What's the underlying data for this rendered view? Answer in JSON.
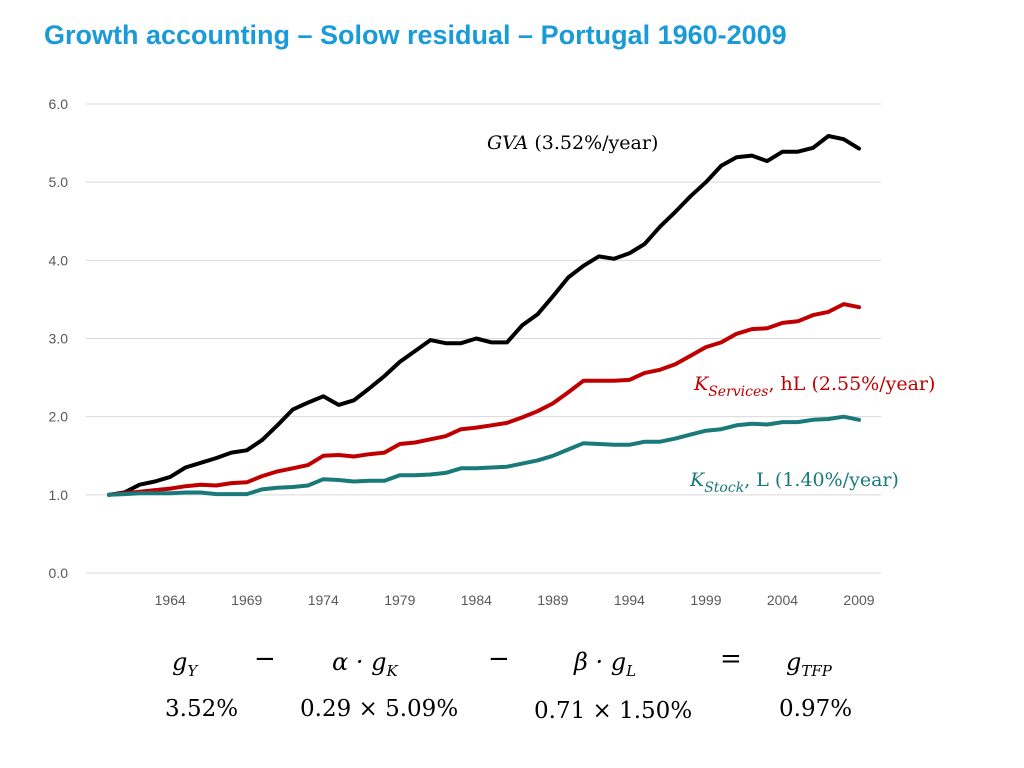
{
  "title": "Growth accounting – Solow residual – Portugal 1960-2009",
  "chart_data": {
    "type": "line",
    "title": "Growth accounting – Solow residual – Portugal 1960-2009",
    "xlabel": "",
    "ylabel": "",
    "ylim": [
      0,
      6
    ],
    "yticks": [
      "0.0",
      "1.0",
      "2.0",
      "3.0",
      "4.0",
      "5.0",
      "6.0"
    ],
    "xticks": [
      "1964",
      "1969",
      "1974",
      "1979",
      "1984",
      "1989",
      "1994",
      "1999",
      "2004",
      "2009"
    ],
    "xrange": [
      1960,
      2009
    ],
    "grid": true,
    "series": [
      {
        "name": "GVA (3.52%/year)",
        "label_main": "GVA",
        "label_sub": "",
        "label_rest": " (3.52%/year)",
        "color": "#000000",
        "x": [
          1960,
          1961,
          1962,
          1963,
          1964,
          1965,
          1966,
          1967,
          1968,
          1969,
          1970,
          1971,
          1972,
          1973,
          1974,
          1975,
          1976,
          1977,
          1978,
          1979,
          1980,
          1981,
          1982,
          1983,
          1984,
          1985,
          1986,
          1987,
          1988,
          1989,
          1990,
          1991,
          1992,
          1993,
          1994,
          1995,
          1996,
          1997,
          1998,
          1999,
          2000,
          2001,
          2002,
          2003,
          2004,
          2005,
          2006,
          2007,
          2008,
          2009
        ],
        "values": [
          1.0,
          1.03,
          1.13,
          1.17,
          1.23,
          1.35,
          1.41,
          1.47,
          1.54,
          1.57,
          1.7,
          1.89,
          2.09,
          2.18,
          2.26,
          2.15,
          2.21,
          2.36,
          2.52,
          2.7,
          2.84,
          2.98,
          2.94,
          2.94,
          3.0,
          2.95,
          2.95,
          3.17,
          3.31,
          3.54,
          3.78,
          3.93,
          4.05,
          4.02,
          4.09,
          4.21,
          4.43,
          4.62,
          4.82,
          5.0,
          5.21,
          5.32,
          5.34,
          5.27,
          5.39,
          5.39,
          5.44,
          5.59,
          5.55,
          5.43
        ]
      },
      {
        "name": "K_Services, hL (2.55%/year)",
        "label_main": "K",
        "label_sub": "Services",
        "label_rest": ", hL (2.55%/year)",
        "color": "#c00000",
        "x": [
          1960,
          1961,
          1962,
          1963,
          1964,
          1965,
          1966,
          1967,
          1968,
          1969,
          1970,
          1971,
          1972,
          1973,
          1974,
          1975,
          1976,
          1977,
          1978,
          1979,
          1980,
          1981,
          1982,
          1983,
          1984,
          1985,
          1986,
          1987,
          1988,
          1989,
          1990,
          1991,
          1992,
          1993,
          1994,
          1995,
          1996,
          1997,
          1998,
          1999,
          2000,
          2001,
          2002,
          2003,
          2004,
          2005,
          2006,
          2007,
          2008,
          2009
        ],
        "values": [
          1.0,
          1.02,
          1.04,
          1.06,
          1.08,
          1.11,
          1.13,
          1.12,
          1.15,
          1.16,
          1.24,
          1.3,
          1.34,
          1.38,
          1.5,
          1.51,
          1.49,
          1.52,
          1.54,
          1.65,
          1.67,
          1.71,
          1.75,
          1.84,
          1.86,
          1.89,
          1.92,
          1.99,
          2.07,
          2.17,
          2.31,
          2.46,
          2.46,
          2.46,
          2.47,
          2.56,
          2.6,
          2.67,
          2.78,
          2.89,
          2.95,
          3.06,
          3.12,
          3.13,
          3.2,
          3.22,
          3.3,
          3.34,
          3.44,
          3.4
        ]
      },
      {
        "name": "K_Stock, L (1.40%/year)",
        "label_main": "K",
        "label_sub": "Stock",
        "label_rest": ", L (1.40%/year)",
        "color": "#1a7a7a",
        "x": [
          1960,
          1961,
          1962,
          1963,
          1964,
          1965,
          1966,
          1967,
          1968,
          1969,
          1970,
          1971,
          1972,
          1973,
          1974,
          1975,
          1976,
          1977,
          1978,
          1979,
          1980,
          1981,
          1982,
          1983,
          1984,
          1985,
          1986,
          1987,
          1988,
          1989,
          1990,
          1991,
          1992,
          1993,
          1994,
          1995,
          1996,
          1997,
          1998,
          1999,
          2000,
          2001,
          2002,
          2003,
          2004,
          2005,
          2006,
          2007,
          2008,
          2009
        ],
        "values": [
          1.0,
          1.01,
          1.02,
          1.02,
          1.02,
          1.03,
          1.03,
          1.01,
          1.01,
          1.01,
          1.07,
          1.09,
          1.1,
          1.12,
          1.2,
          1.19,
          1.17,
          1.18,
          1.18,
          1.25,
          1.25,
          1.26,
          1.28,
          1.34,
          1.34,
          1.35,
          1.36,
          1.4,
          1.44,
          1.5,
          1.58,
          1.66,
          1.65,
          1.64,
          1.64,
          1.68,
          1.68,
          1.72,
          1.77,
          1.82,
          1.84,
          1.89,
          1.91,
          1.9,
          1.93,
          1.93,
          1.96,
          1.97,
          2.0,
          1.96
        ]
      }
    ]
  },
  "equation": {
    "term1": "g_Y",
    "op1": "−",
    "term2": "α · g_K",
    "op2": "−",
    "term3": "β · g_L",
    "op3": "=",
    "term4": "g_TFP",
    "val1": "3.52%",
    "val2": "0.29 × 5.09%",
    "val3": "0.71 × 1.50%",
    "val4": "0.97%"
  }
}
